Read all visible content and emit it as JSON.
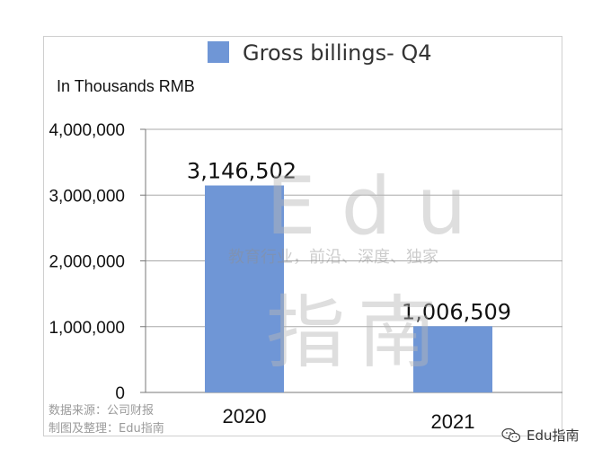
{
  "chart_data": {
    "type": "bar",
    "title": "Gross billings- Q4",
    "unit_note": "In Thousands RMB",
    "categories": [
      "2020",
      "2021"
    ],
    "series": [
      {
        "name": "Gross billings- Q4",
        "values": [
          3146502,
          1006509
        ],
        "labels": [
          "3,146,502",
          "1,006,509"
        ]
      }
    ],
    "ylim": [
      0,
      4000000
    ],
    "yticks": [
      0,
      1000000,
      2000000,
      3000000,
      4000000
    ],
    "ytick_labels": [
      "0",
      "1,000,000",
      "2,000,000",
      "3,000,000",
      "4,000,000"
    ],
    "grid": true,
    "legend_position": "top",
    "bar_color": "#6f96d6",
    "axis_color": "#999999"
  },
  "watermark": {
    "edu": "Edu",
    "tagline": "教育行业，前沿、深度、独家",
    "cn": "指南"
  },
  "source": {
    "line1": "数据来源：公司财报",
    "line2": "制图及整理：Edu指南"
  },
  "brand": {
    "icon": "wechat-icon",
    "label": "Edu指南"
  }
}
